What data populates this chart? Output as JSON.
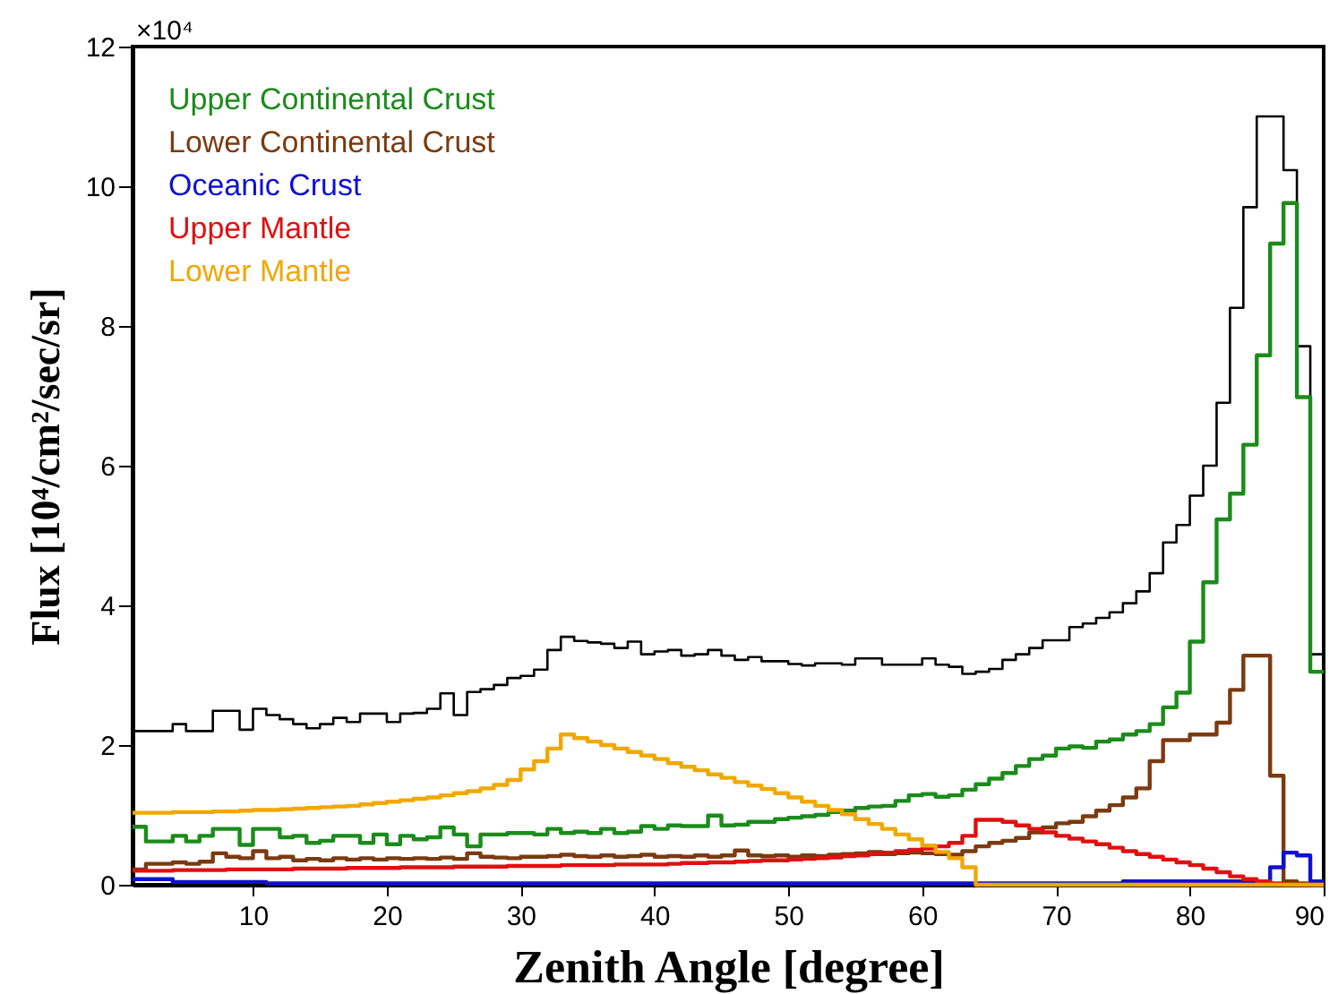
{
  "chart_data": {
    "type": "histogram",
    "xlabel": "Zenith Angle [degree]",
    "ylabel": "Flux [10⁴/cm²/sec/sr]",
    "annotations": [
      "×10⁴"
    ],
    "xlim": [
      1,
      90
    ],
    "xticks": [
      10,
      20,
      30,
      40,
      50,
      60,
      70,
      80,
      90
    ],
    "ylim": [
      0,
      12
    ],
    "yticks": [
      0,
      2,
      4,
      6,
      8,
      10,
      12
    ],
    "grid": false,
    "legend": "top left",
    "bins": [
      1,
      2,
      3,
      4,
      5,
      6,
      7,
      8,
      9,
      10,
      11,
      12,
      13,
      14,
      15,
      16,
      17,
      18,
      19,
      20,
      21,
      22,
      23,
      24,
      25,
      26,
      27,
      28,
      29,
      30,
      31,
      32,
      33,
      34,
      35,
      36,
      37,
      38,
      39,
      40,
      41,
      42,
      43,
      44,
      45,
      46,
      47,
      48,
      49,
      50,
      51,
      52,
      53,
      54,
      55,
      56,
      57,
      58,
      59,
      60,
      61,
      62,
      63,
      64,
      65,
      66,
      67,
      68,
      69,
      70,
      71,
      72,
      73,
      74,
      75,
      76,
      77,
      78,
      79,
      80,
      81,
      82,
      83,
      84,
      85,
      86,
      87,
      88,
      89,
      90
    ],
    "series": [
      {
        "color": "#000000",
        "values": [
          2.2,
          2.2,
          2.2,
          2.3,
          2.2,
          2.2,
          2.49,
          2.49,
          2.22,
          2.52,
          2.43,
          2.37,
          2.3,
          2.24,
          2.3,
          2.39,
          2.33,
          2.45,
          2.45,
          2.33,
          2.45,
          2.46,
          2.52,
          2.74,
          2.43,
          2.76,
          2.8,
          2.86,
          2.96,
          2.99,
          3.08,
          3.36,
          3.55,
          3.49,
          3.47,
          3.45,
          3.39,
          3.48,
          3.3,
          3.34,
          3.36,
          3.28,
          3.3,
          3.36,
          3.28,
          3.22,
          3.26,
          3.2,
          3.2,
          3.16,
          3.14,
          3.17,
          3.17,
          3.15,
          3.24,
          3.24,
          3.15,
          3.15,
          3.15,
          3.24,
          3.15,
          3.12,
          3.02,
          3.05,
          3.09,
          3.22,
          3.3,
          3.39,
          3.5,
          3.5,
          3.69,
          3.74,
          3.82,
          3.9,
          4.03,
          4.2,
          4.46,
          4.9,
          5.15,
          5.57,
          6.0,
          6.9,
          8.26,
          9.7,
          11.0,
          11.0,
          10.23,
          7.71,
          3.3
        ]
      },
      {
        "name": "Upper Continental Crust",
        "color": "#1a8c1a",
        "values": [
          0.83,
          0.62,
          0.62,
          0.7,
          0.62,
          0.7,
          0.8,
          0.8,
          0.57,
          0.8,
          0.8,
          0.68,
          0.7,
          0.6,
          0.63,
          0.7,
          0.7,
          0.6,
          0.72,
          0.58,
          0.7,
          0.65,
          0.68,
          0.82,
          0.72,
          0.55,
          0.72,
          0.72,
          0.74,
          0.74,
          0.72,
          0.8,
          0.74,
          0.76,
          0.74,
          0.8,
          0.74,
          0.76,
          0.84,
          0.8,
          0.85,
          0.84,
          0.84,
          0.99,
          0.85,
          0.86,
          0.9,
          0.9,
          0.94,
          0.96,
          0.98,
          1.0,
          1.04,
          1.06,
          1.1,
          1.12,
          1.13,
          1.2,
          1.28,
          1.3,
          1.26,
          1.28,
          1.36,
          1.44,
          1.52,
          1.6,
          1.7,
          1.8,
          1.85,
          1.95,
          1.98,
          1.96,
          2.05,
          2.08,
          2.15,
          2.2,
          2.3,
          2.54,
          2.75,
          3.48,
          4.33,
          5.23,
          5.6,
          6.3,
          7.58,
          9.18,
          9.76,
          6.98,
          3.05
        ]
      },
      {
        "name": "Lower Continental Crust",
        "color": "#7b3a10",
        "values": [
          0.22,
          0.3,
          0.3,
          0.32,
          0.3,
          0.33,
          0.45,
          0.4,
          0.38,
          0.48,
          0.38,
          0.4,
          0.35,
          0.37,
          0.35,
          0.38,
          0.36,
          0.38,
          0.36,
          0.38,
          0.37,
          0.38,
          0.37,
          0.39,
          0.37,
          0.45,
          0.4,
          0.39,
          0.38,
          0.4,
          0.4,
          0.41,
          0.43,
          0.41,
          0.4,
          0.42,
          0.4,
          0.41,
          0.43,
          0.4,
          0.41,
          0.4,
          0.42,
          0.4,
          0.42,
          0.49,
          0.42,
          0.41,
          0.42,
          0.4,
          0.42,
          0.41,
          0.43,
          0.44,
          0.45,
          0.47,
          0.44,
          0.45,
          0.46,
          0.45,
          0.44,
          0.43,
          0.48,
          0.55,
          0.6,
          0.63,
          0.67,
          0.75,
          0.82,
          0.88,
          0.9,
          0.98,
          1.06,
          1.14,
          1.25,
          1.38,
          1.77,
          2.07,
          2.07,
          2.15,
          2.15,
          2.32,
          2.79,
          3.28,
          3.28,
          1.56,
          0.05,
          0.02,
          0
        ]
      },
      {
        "name": "Oceanic Crust",
        "color": "#1010d0",
        "values": [
          0.08,
          0.08,
          0.08,
          0.04,
          0.04,
          0.04,
          0.04,
          0.04,
          0.04,
          0.04,
          0.02,
          0.02,
          0.02,
          0.02,
          0.02,
          0.02,
          0.02,
          0.02,
          0.02,
          0.02,
          0.02,
          0.02,
          0.02,
          0.02,
          0.02,
          0.02,
          0.02,
          0.02,
          0.02,
          0.02,
          0.02,
          0.02,
          0.02,
          0.02,
          0.02,
          0.02,
          0.02,
          0.02,
          0.02,
          0.02,
          0.02,
          0.02,
          0.02,
          0.02,
          0.02,
          0.02,
          0.02,
          0.02,
          0.02,
          0.02,
          0.02,
          0.02,
          0.02,
          0.02,
          0.02,
          0.02,
          0.02,
          0.02,
          0.02,
          0.02,
          0.02,
          0.02,
          0.02,
          0.02,
          0.02,
          0.02,
          0.02,
          0.02,
          0.02,
          0.02,
          0.02,
          0.02,
          0.02,
          0.02,
          0.05,
          0.05,
          0.05,
          0.05,
          0.05,
          0.05,
          0.05,
          0.05,
          0.05,
          0.05,
          0.05,
          0.25,
          0.46,
          0.42,
          0.05
        ]
      },
      {
        "name": "Upper Mantle",
        "color": "#e01010",
        "values": [
          0.2,
          0.2,
          0.2,
          0.21,
          0.21,
          0.21,
          0.21,
          0.22,
          0.22,
          0.22,
          0.22,
          0.22,
          0.23,
          0.23,
          0.23,
          0.23,
          0.24,
          0.24,
          0.24,
          0.24,
          0.25,
          0.25,
          0.25,
          0.25,
          0.26,
          0.26,
          0.26,
          0.26,
          0.27,
          0.27,
          0.27,
          0.27,
          0.28,
          0.28,
          0.28,
          0.28,
          0.29,
          0.29,
          0.29,
          0.29,
          0.3,
          0.31,
          0.31,
          0.32,
          0.32,
          0.33,
          0.34,
          0.35,
          0.35,
          0.36,
          0.37,
          0.38,
          0.39,
          0.41,
          0.42,
          0.44,
          0.46,
          0.48,
          0.5,
          0.52,
          0.55,
          0.6,
          0.7,
          0.93,
          0.93,
          0.9,
          0.85,
          0.8,
          0.75,
          0.7,
          0.66,
          0.62,
          0.58,
          0.53,
          0.48,
          0.44,
          0.4,
          0.36,
          0.32,
          0.28,
          0.23,
          0.18,
          0.12,
          0.08,
          0.05,
          0.02,
          0,
          0,
          0
        ]
      },
      {
        "name": "Lower Mantle",
        "color": "#f0a800",
        "values": [
          1.03,
          1.03,
          1.03,
          1.04,
          1.04,
          1.04,
          1.05,
          1.05,
          1.06,
          1.07,
          1.07,
          1.08,
          1.09,
          1.1,
          1.11,
          1.12,
          1.13,
          1.15,
          1.17,
          1.19,
          1.21,
          1.23,
          1.25,
          1.28,
          1.31,
          1.34,
          1.38,
          1.43,
          1.5,
          1.65,
          1.77,
          1.95,
          2.15,
          2.1,
          2.05,
          2.0,
          1.95,
          1.9,
          1.85,
          1.8,
          1.74,
          1.69,
          1.64,
          1.58,
          1.53,
          1.47,
          1.42,
          1.37,
          1.31,
          1.25,
          1.19,
          1.13,
          1.07,
          1.01,
          0.94,
          0.87,
          0.8,
          0.72,
          0.65,
          0.56,
          0.47,
          0.38,
          0.25,
          0,
          0,
          0,
          0,
          0,
          0,
          0,
          0,
          0,
          0,
          0,
          0,
          0,
          0,
          0,
          0,
          0,
          0,
          0,
          0,
          0,
          0,
          0,
          0,
          0,
          0
        ]
      }
    ]
  }
}
